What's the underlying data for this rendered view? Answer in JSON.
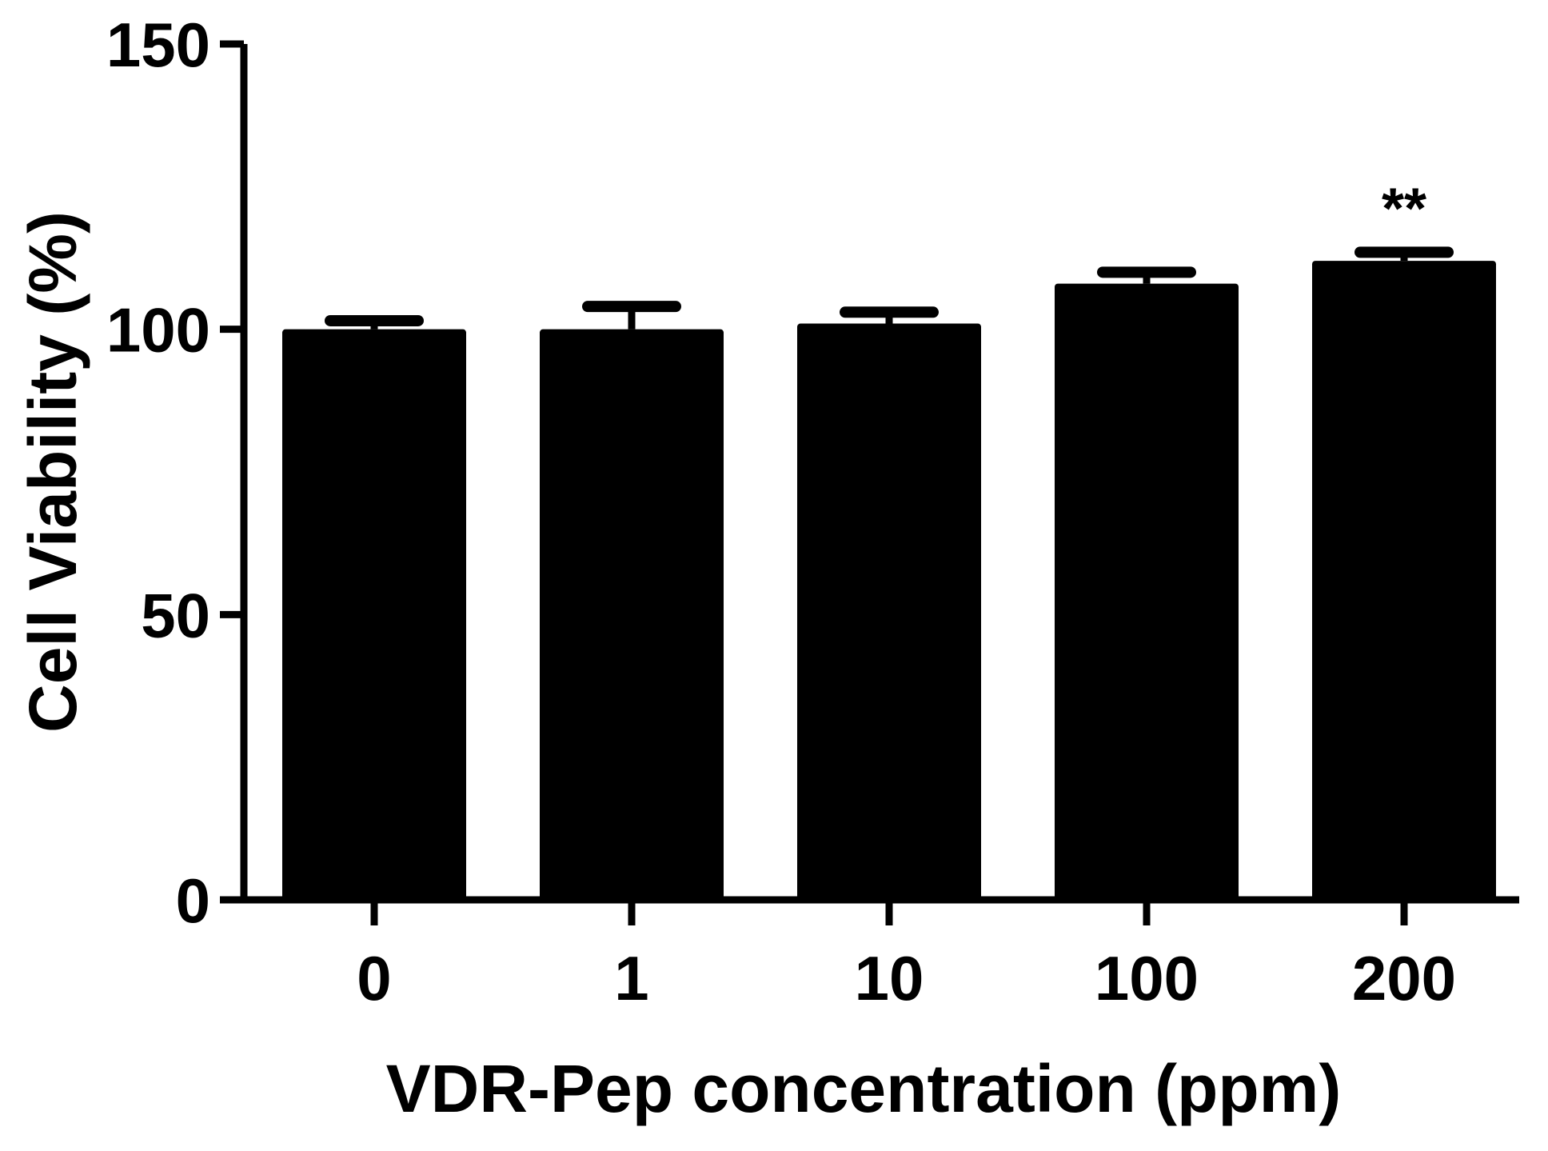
{
  "chart_data": {
    "type": "bar",
    "categories": [
      "0",
      "1",
      "10",
      "100",
      "200"
    ],
    "values": [
      100,
      100,
      101,
      108,
      112
    ],
    "errors": [
      1.5,
      4,
      2,
      2,
      1.5
    ],
    "annotations": [
      {
        "category": "200",
        "text": "**"
      }
    ],
    "xlabel": "VDR-Pep concentration (ppm)",
    "ylabel": "Cell Viability (%)",
    "ylim": [
      0,
      150
    ],
    "yticks": [
      0,
      50,
      100,
      150
    ],
    "grid": false,
    "legend": "none",
    "bar_color": "#000000"
  }
}
